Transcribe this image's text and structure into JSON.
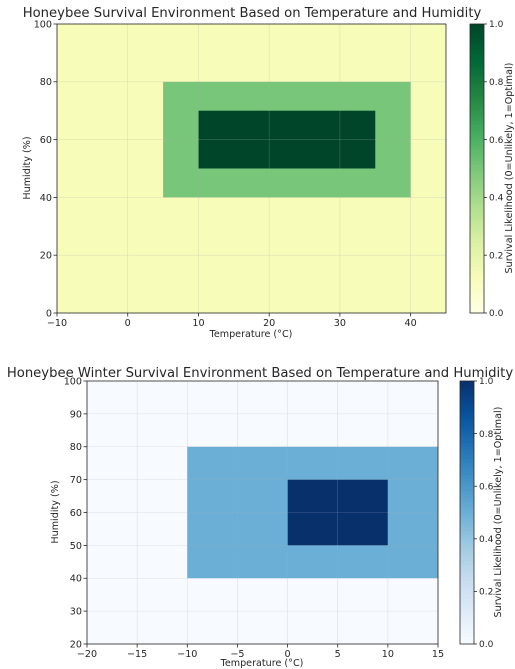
{
  "chart_data": [
    {
      "type": "heatmap",
      "title": "Honeybee Survival Environment Based on Temperature and Humidity",
      "xlabel": "Temperature (°C)",
      "ylabel": "Humidity (%)",
      "xlim": [
        -10,
        45
      ],
      "ylim": [
        0,
        100
      ],
      "xticks": [
        "−10",
        "0",
        "10",
        "20",
        "30",
        "40"
      ],
      "yticks": [
        "0",
        "20",
        "40",
        "60",
        "80",
        "100"
      ],
      "colormap": "Greens",
      "colorbar_label": "Survival Likelihood (0=Unlikely, 1=Optimal)",
      "colorbar_ticks": [
        "0.0",
        "0.2",
        "0.4",
        "0.6",
        "0.8",
        "1.0"
      ],
      "grid": true,
      "regions": [
        {
          "x_range": [
            -10,
            45
          ],
          "y_range": [
            0,
            100
          ],
          "value": 0.0
        },
        {
          "x_range": [
            5,
            40
          ],
          "y_range": [
            40,
            80
          ],
          "value": 0.5
        },
        {
          "x_range": [
            10,
            35
          ],
          "y_range": [
            50,
            70
          ],
          "value": 1.0
        }
      ]
    },
    {
      "type": "heatmap",
      "title": "Honeybee Winter Survival Environment Based on Temperature and Humidity",
      "xlabel": "Temperature (°C)",
      "ylabel": "Humidity (%)",
      "xlim": [
        -20,
        15
      ],
      "ylim": [
        20,
        100
      ],
      "xticks": [
        "−20",
        "−15",
        "−10",
        "−5",
        "0",
        "5",
        "10",
        "15"
      ],
      "yticks": [
        "20",
        "30",
        "40",
        "50",
        "60",
        "70",
        "80",
        "90",
        "100"
      ],
      "colormap": "Blues",
      "colorbar_label": "Survival Likelihood (0=Unlikely, 1=Optimal)",
      "colorbar_ticks": [
        "0.0",
        "0.2",
        "0.4",
        "0.6",
        "0.8",
        "1.0"
      ],
      "grid": true,
      "regions": [
        {
          "x_range": [
            -20,
            15
          ],
          "y_range": [
            20,
            100
          ],
          "value": 0.0
        },
        {
          "x_range": [
            -10,
            15
          ],
          "y_range": [
            40,
            80
          ],
          "value": 0.5
        },
        {
          "x_range": [
            0,
            10
          ],
          "y_range": [
            50,
            70
          ],
          "value": 1.0
        }
      ]
    }
  ],
  "colors": {
    "greens": [
      "#f7fcb9",
      "#78c679",
      "#004529"
    ],
    "greens_scale": [
      "#ffffe5",
      "#f7fcb9",
      "#d9f0a3",
      "#addd8e",
      "#78c679",
      "#41ab5d",
      "#238443",
      "#006837",
      "#004529"
    ],
    "blues_scale": [
      "#f7fbff",
      "#deebf7",
      "#c6dbef",
      "#9ecae1",
      "#6baed6",
      "#4292c6",
      "#2171b5",
      "#08519c",
      "#08306b"
    ]
  }
}
